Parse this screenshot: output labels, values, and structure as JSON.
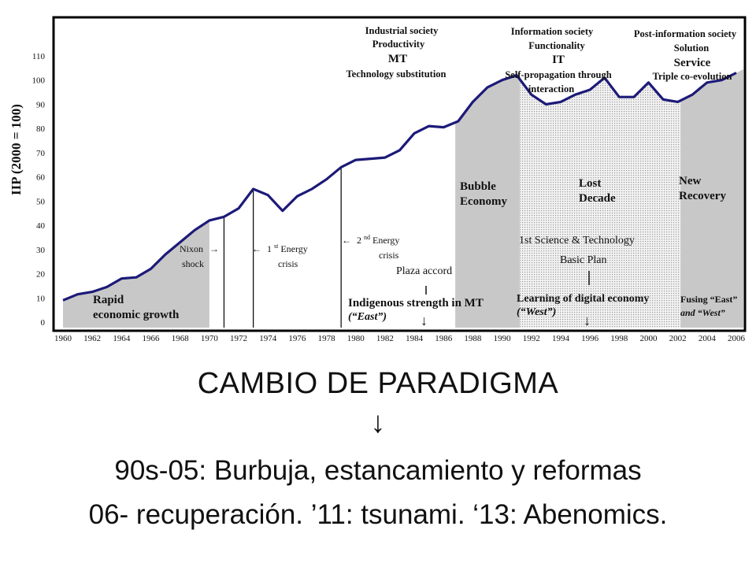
{
  "chart_data": {
    "type": "area",
    "ylabel": "IIP (2000 = 100)",
    "ylim": [
      0,
      110
    ],
    "yticks": [
      0,
      10,
      20,
      30,
      40,
      50,
      60,
      70,
      80,
      90,
      100,
      110
    ],
    "xticks": [
      1960,
      1962,
      1964,
      1966,
      1968,
      1970,
      1972,
      1974,
      1976,
      1978,
      1980,
      1982,
      1984,
      1986,
      1988,
      1990,
      1992,
      1994,
      1996,
      1998,
      2000,
      2002,
      2004,
      2006
    ],
    "grid": false,
    "series": [
      {
        "x": [
          1960,
          1961,
          1962,
          1963,
          1964,
          1965,
          1966,
          1967,
          1968,
          1969,
          1970,
          1971,
          1972,
          1973,
          1974,
          1975,
          1976,
          1977,
          1978,
          1979,
          1980,
          1981,
          1982,
          1983,
          1984,
          1985,
          1986,
          1987,
          1988,
          1989,
          1990,
          1991,
          1992,
          1993,
          1994,
          1995,
          1996,
          1997,
          1998,
          1999,
          2000,
          2001,
          2002,
          2003,
          2004,
          2005,
          2006
        ],
        "values": [
          9,
          11.5,
          12.5,
          14.5,
          18,
          18.5,
          22,
          28,
          33,
          38,
          42,
          43.5,
          47,
          55,
          52.5,
          46,
          52,
          55,
          59,
          64,
          67,
          67.5,
          68,
          71,
          78,
          81,
          80.5,
          83,
          91,
          97,
          100,
          102,
          94,
          90,
          91,
          94,
          96,
          101,
          93,
          93,
          99,
          92,
          91,
          94,
          99,
          100,
          103
        ]
      }
    ],
    "shaded_periods": [
      {
        "start": 1960,
        "end": 1970,
        "style": "gray"
      },
      {
        "start": 1986.8,
        "end": 1991.2,
        "style": "gray"
      },
      {
        "start": 1991.2,
        "end": 2002.2,
        "style": "dotted"
      },
      {
        "start": 2002.2,
        "end": 2006.6,
        "style": "gray"
      }
    ],
    "event_lines": [
      1971,
      1973,
      1979
    ]
  },
  "annotations": {
    "rapid_1": "Rapid",
    "rapid_2": "economic growth",
    "nixon_1": "Nixon",
    "nixon_2": "shock",
    "nixon_arrow": "→",
    "energy1_arrow": "←",
    "energy1_pre": "1",
    "energy1_sup": "st",
    "energy1_post": " Energy",
    "energy1_2": "crisis",
    "energy2_arrow": "←",
    "energy2_pre": "2",
    "energy2_sup": "nd",
    "energy2_post": " Energy",
    "energy2_2": "crisis",
    "plaza": "Plaza accord",
    "indigenous_1": "Indigenous strength in MT",
    "indigenous_2": "(“East”)",
    "bubble_1": "Bubble",
    "bubble_2": "Economy",
    "lost_1": "Lost",
    "lost_2": "Decade",
    "science_1": "1st Science & Technology",
    "science_2": "Basic Plan",
    "digital_1": "Learning of digital economy",
    "digital_2": "(“West”)",
    "new_1": "New",
    "new_2": "Recovery",
    "fusing_1": "Fusing “East”",
    "fusing_2": "and “West”",
    "ind_1": "Industrial society",
    "ind_2": "Productivity",
    "ind_3": "MT",
    "ind_4": "Technology substitution",
    "info_1": "Information society",
    "info_2": "Functionality",
    "info_3": "IT",
    "info_4": "Self-propagation through",
    "info_5": "interaction",
    "post_1": "Post-information society",
    "post_2": "Solution",
    "post_3": "Service",
    "post_4": "Triple co-evolution",
    "down_arrow": "↓"
  },
  "caption": {
    "title": "CAMBIO DE PARADIGMA",
    "arrow": "↓",
    "line1": "90s-05: Burbuja, estancamiento y reformas",
    "line2": "06- recuperación. ’11: tsunami. ‘13: Abenomics."
  },
  "colors": {
    "line": "#1c1a78",
    "shade": "#c8c8c8",
    "frame": "#000000",
    "text": "#111111"
  }
}
